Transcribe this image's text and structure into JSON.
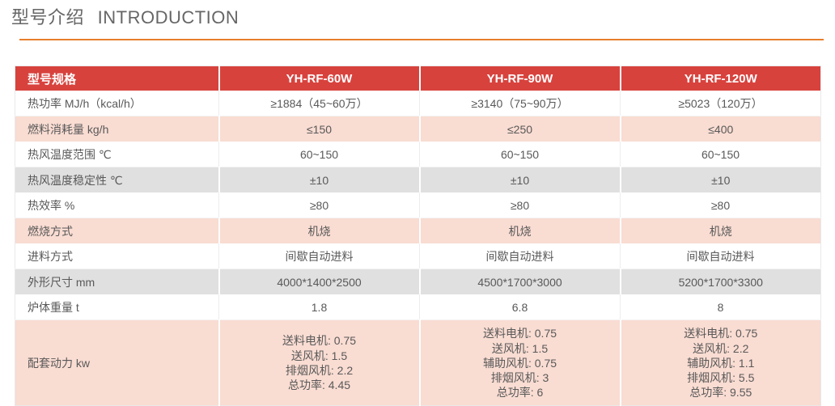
{
  "page": {
    "title_cn": "型号介绍",
    "title_en": "INTRODUCTION",
    "accent_color": "#e87e2b",
    "header_bg_color": "#d8423d",
    "row_pink_color": "#f9dcd2",
    "row_gray_color": "#e0e0e0"
  },
  "table": {
    "header": [
      "型号规格",
      "YH-RF-60W",
      "YH-RF-90W",
      "YH-RF-120W"
    ],
    "rows": [
      {
        "label": "热功率 MJ/h（kcal/h）",
        "bg": "plain",
        "values": [
          "≥1884（45~60万）",
          "≥3140（75~90万）",
          "≥5023（120万）"
        ]
      },
      {
        "label": "燃料消耗量 kg/h",
        "bg": "pink",
        "values": [
          "≤150",
          "≤250",
          "≤400"
        ]
      },
      {
        "label": "热风温度范围 ℃",
        "bg": "plain",
        "values": [
          "60~150",
          "60~150",
          "60~150"
        ]
      },
      {
        "label": "热风温度稳定性 ℃",
        "bg": "gray",
        "values": [
          "±10",
          "±10",
          "±10"
        ]
      },
      {
        "label": "热效率 %",
        "bg": "plain",
        "values": [
          "≥80",
          "≥80",
          "≥80"
        ]
      },
      {
        "label": "燃烧方式",
        "bg": "pink",
        "values": [
          "机烧",
          "机烧",
          "机烧"
        ]
      },
      {
        "label": "进料方式",
        "bg": "plain",
        "values": [
          "间歇自动进料",
          "间歇自动进料",
          "间歇自动进料"
        ]
      },
      {
        "label": "外形尺寸 mm",
        "bg": "gray",
        "values": [
          "4000*1400*2500",
          "4500*1700*3000",
          "5200*1700*3300"
        ]
      },
      {
        "label": "炉体重量 t",
        "bg": "plain",
        "values": [
          "1.8",
          "6.8",
          "8"
        ]
      },
      {
        "label": "配套动力 kw",
        "bg": "pink",
        "values": [
          "送料电机: 0.75\n送风机: 1.5\n排烟风机: 2.2\n总功率: 4.45",
          "送料电机: 0.75\n送风机: 1.5\n辅助风机: 0.75\n排烟风机: 3\n总功率: 6",
          "送料电机: 0.75\n送风机: 2.2\n辅助风机: 1.1\n排烟风机: 5.5\n总功率: 9.55"
        ]
      }
    ]
  }
}
